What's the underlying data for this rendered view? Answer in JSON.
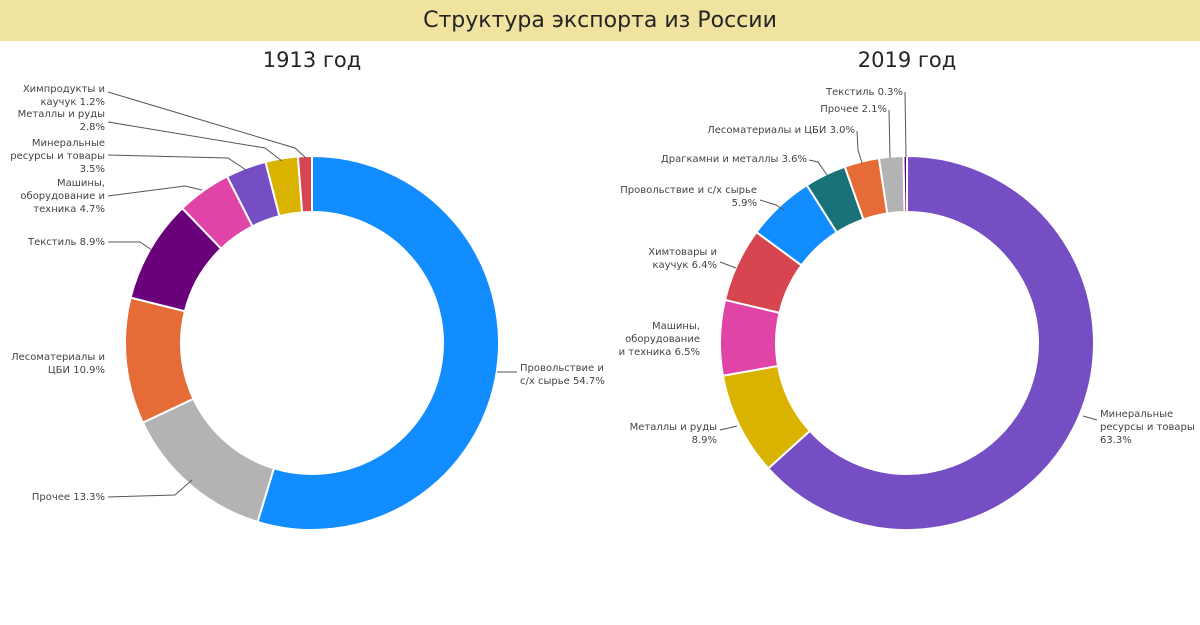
{
  "header": {
    "title": "Структура экспорта из России"
  },
  "chart_data": [
    {
      "type": "pie",
      "title": "1913 год",
      "donut": true,
      "start": "top, clockwise",
      "slices": [
        {
          "name": "Провольствие и\nс/х сырье",
          "value": 54.7,
          "label": "54.7%",
          "color": "#118dff"
        },
        {
          "name": "Прочее",
          "value": 13.3,
          "label": "13.3%",
          "color": "#b3b3b3"
        },
        {
          "name": "Лесоматериалы и\nЦБИ",
          "value": 10.9,
          "label": "10.9%",
          "color": "#e66c37"
        },
        {
          "name": "Текстиль",
          "value": 8.9,
          "label": "8.9%",
          "color": "#6b007b"
        },
        {
          "name": "Машины,\nоборудование и\nтехника",
          "value": 4.7,
          "label": "4.7%",
          "color": "#e044a7"
        },
        {
          "name": "Минеральные\nресурсы и товары",
          "value": 3.5,
          "label": "3.5%",
          "color": "#744ec2"
        },
        {
          "name": "Металлы и руды",
          "value": 2.8,
          "label": "2.8%",
          "color": "#d9b300"
        },
        {
          "name": "Химпродукты и\nкаучук",
          "value": 1.2,
          "label": "1.2%",
          "color": "#d64550"
        }
      ]
    },
    {
      "type": "pie",
      "title": "2019 год",
      "donut": true,
      "start": "top, clockwise",
      "slices": [
        {
          "name": "Минеральные\nресурсы и товары",
          "value": 63.3,
          "label": "63.3%",
          "color": "#744ec2"
        },
        {
          "name": "Металлы и руды",
          "value": 8.9,
          "label": "8.9%",
          "color": "#d9b300"
        },
        {
          "name": "Машины,\nоборудование\nи техника",
          "value": 6.5,
          "label": "6.5%",
          "color": "#e044a7"
        },
        {
          "name": "Химтовары и\nкаучук",
          "value": 6.4,
          "label": "6.4%",
          "color": "#d64550"
        },
        {
          "name": "Провольствие и с/х сырье",
          "value": 5.9,
          "label": "5.9%",
          "color": "#118dff"
        },
        {
          "name": "Драгкамни и металлы",
          "value": 3.6,
          "label": "3.6%",
          "color": "#197278"
        },
        {
          "name": "Лесоматериалы и ЦБИ",
          "value": 3.0,
          "label": "3.0%",
          "color": "#e66c37"
        },
        {
          "name": "Прочее",
          "value": 2.1,
          "label": "2.1%",
          "color": "#b3b3b3"
        },
        {
          "name": "Текстиль",
          "value": 0.3,
          "label": "0.3%",
          "color": "#6b007b"
        }
      ]
    }
  ]
}
